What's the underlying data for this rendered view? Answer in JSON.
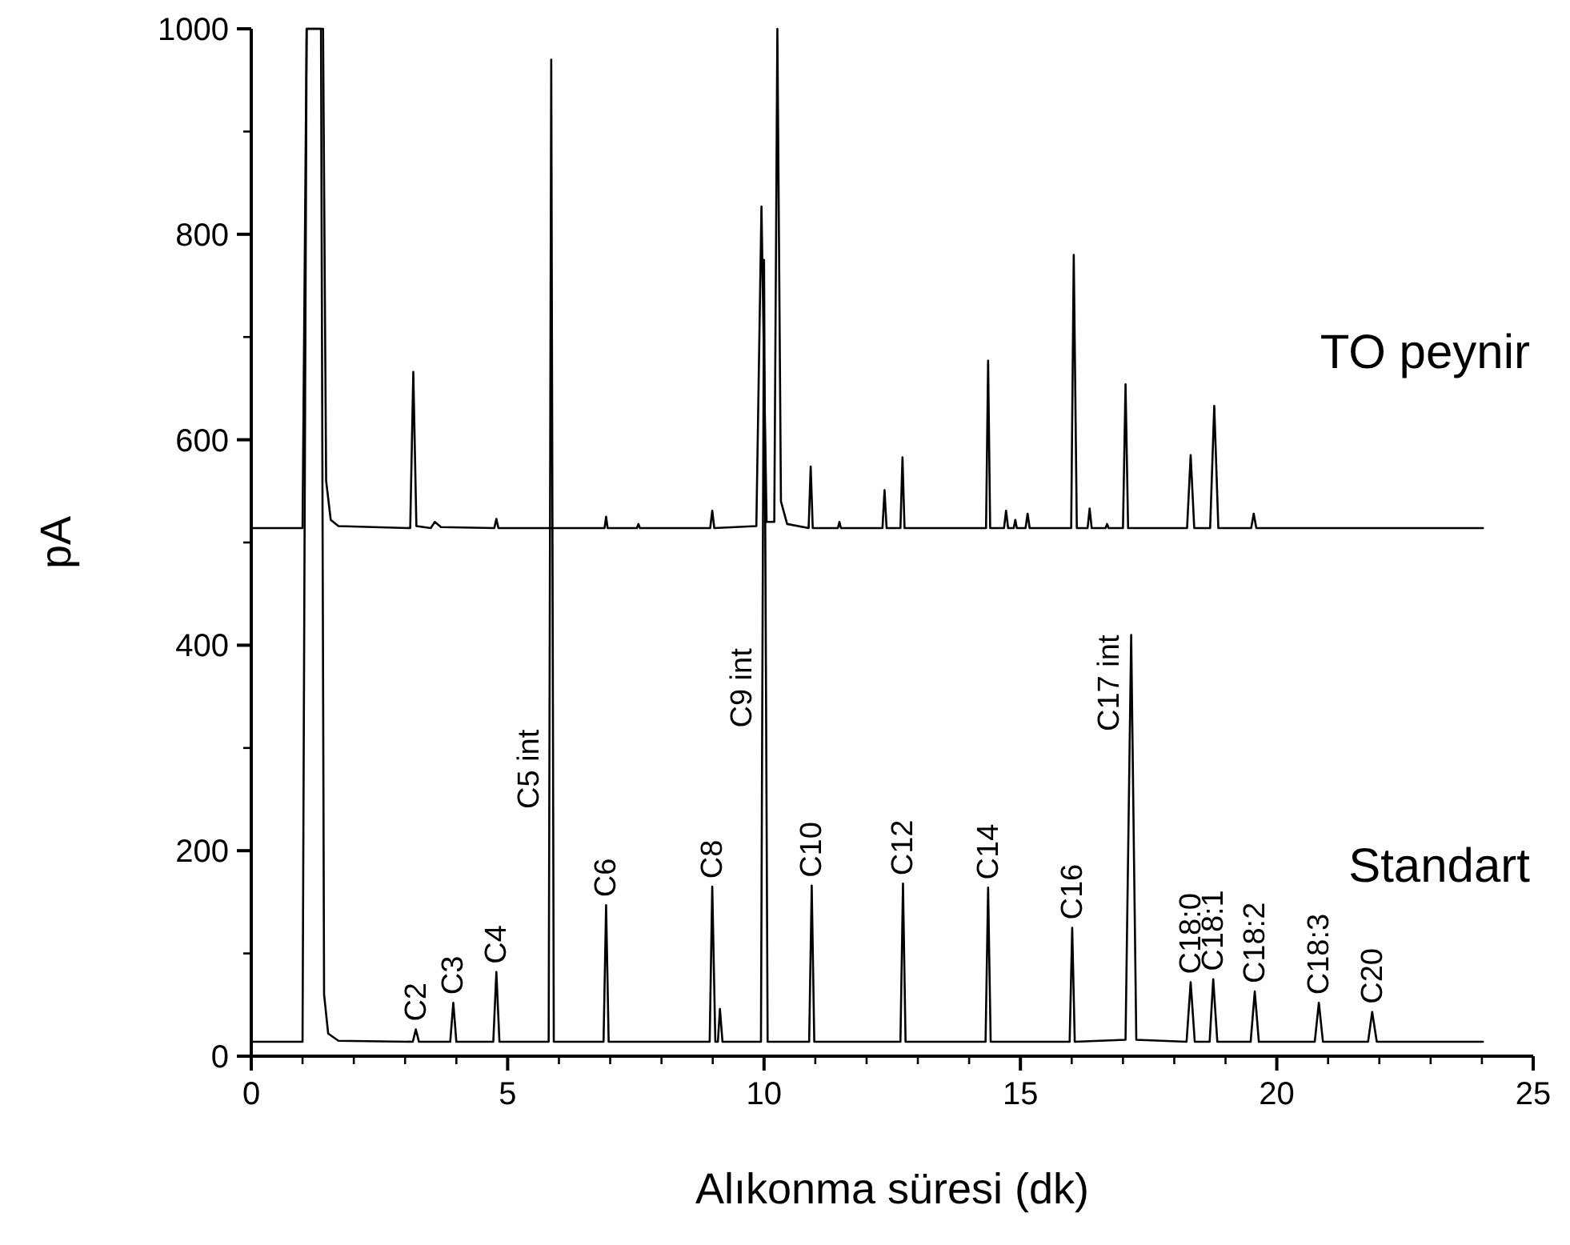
{
  "chart_data": {
    "type": "line",
    "xlabel": "Alıkonma süresi (dk)",
    "ylabel": "pA",
    "xlim": [
      0,
      25
    ],
    "ylim": [
      0,
      1000
    ],
    "xticks": [
      0,
      {
        "value": 1,
        "label": null
      },
      {
        "value": 2,
        "label": null
      },
      {
        "value": 3,
        "label": null
      },
      {
        "value": 4,
        "label": null
      },
      5,
      {
        "value": 6,
        "label": null
      },
      {
        "value": 7,
        "label": null
      },
      {
        "value": 8,
        "label": null
      },
      {
        "value": 9,
        "label": null
      },
      10,
      {
        "value": 11,
        "label": null
      },
      {
        "value": 12,
        "label": null
      },
      {
        "value": 13,
        "label": null
      },
      {
        "value": 14,
        "label": null
      },
      15,
      {
        "value": 16,
        "label": null
      },
      {
        "value": 17,
        "label": null
      },
      {
        "value": 18,
        "label": null
      },
      {
        "value": 19,
        "label": null
      },
      20,
      {
        "value": 21,
        "label": null
      },
      {
        "value": 22,
        "label": null
      },
      {
        "value": 23,
        "label": null
      },
      {
        "value": 24,
        "label": null
      },
      25
    ],
    "yticks": [
      0,
      {
        "value": 100,
        "label": null
      },
      200,
      {
        "value": 300,
        "label": null
      },
      400,
      {
        "value": 500,
        "label": null
      },
      600,
      {
        "value": 700,
        "label": null
      },
      800,
      {
        "value": 900,
        "label": null
      },
      1000
    ],
    "grid": false,
    "marker": "none",
    "line_style": "solid",
    "series": [
      {
        "name": "TO peynir",
        "color": "#000000",
        "x": [
          0,
          1.0,
          1.08,
          1.4,
          1.46,
          1.55,
          1.7,
          3.1,
          3.16,
          3.22,
          3.5,
          3.58,
          3.7,
          4.74,
          4.78,
          4.82,
          6.89,
          6.92,
          6.95,
          7.52,
          7.55,
          7.58,
          8.95,
          8.99,
          9.03,
          9.85,
          9.95,
          10.05,
          10.2,
          10.26,
          10.33,
          10.45,
          10.87,
          10.91,
          10.95,
          11.44,
          11.47,
          11.5,
          12.31,
          12.35,
          12.39,
          12.66,
          12.7,
          12.74,
          14.33,
          14.37,
          14.41,
          14.68,
          14.72,
          14.76,
          14.87,
          14.9,
          14.93,
          15.1,
          15.14,
          15.18,
          15.99,
          16.04,
          16.1,
          16.31,
          16.35,
          16.39,
          16.66,
          16.69,
          16.72,
          17.0,
          17.05,
          17.1,
          18.25,
          18.32,
          18.39,
          18.7,
          18.78,
          18.86,
          19.5,
          19.55,
          19.6,
          24.02
        ],
        "values": [
          514,
          514,
          1000,
          1000,
          560,
          522,
          516,
          514,
          666,
          516,
          514,
          520,
          515,
          514,
          523,
          514,
          514,
          525,
          514,
          514,
          518,
          514,
          514,
          531,
          514,
          516,
          827,
          520,
          520,
          1000,
          540,
          518,
          514,
          574,
          514,
          514,
          520,
          514,
          514,
          551,
          514,
          514,
          583,
          514,
          514,
          677,
          514,
          514,
          531,
          514,
          514,
          522,
          514,
          514,
          528,
          514,
          514,
          780,
          514,
          514,
          533,
          514,
          514,
          518,
          514,
          514,
          654,
          514,
          514,
          585,
          514,
          514,
          633,
          514,
          514,
          528,
          514,
          514
        ]
      },
      {
        "name": "Standart",
        "color": "#000000",
        "x": [
          0,
          1.0,
          1.08,
          1.36,
          1.42,
          1.5,
          1.7,
          3.15,
          3.21,
          3.27,
          3.88,
          3.94,
          4.0,
          4.72,
          4.78,
          4.84,
          5.8,
          5.85,
          5.9,
          6.87,
          6.92,
          6.97,
          8.94,
          8.99,
          9.05,
          9.1,
          9.14,
          9.19,
          9.94,
          10.0,
          10.07,
          10.88,
          10.93,
          10.98,
          12.66,
          12.71,
          12.76,
          14.32,
          14.37,
          14.42,
          15.96,
          16.01,
          16.06,
          17.05,
          17.16,
          17.26,
          18.24,
          18.32,
          18.4,
          18.69,
          18.76,
          18.84,
          19.49,
          19.57,
          19.65,
          20.74,
          20.82,
          20.9,
          21.78,
          21.86,
          21.95,
          24.02
        ],
        "values": [
          14,
          14,
          1000,
          1000,
          60,
          22,
          15,
          14,
          26,
          14,
          14,
          52,
          14,
          14,
          82,
          14,
          14,
          970,
          14,
          14,
          147,
          14,
          14,
          165,
          14,
          14,
          46,
          14,
          14,
          775,
          14,
          14,
          166,
          14,
          14,
          168,
          14,
          14,
          164,
          14,
          14,
          125,
          14,
          16,
          410,
          16,
          14,
          72,
          14,
          14,
          75,
          14,
          14,
          63,
          14,
          14,
          52,
          14,
          14,
          43,
          14,
          14
        ]
      }
    ],
    "annotations": [
      {
        "text": "C2",
        "x": 3.21,
        "y": 26
      },
      {
        "text": "C3",
        "x": 3.94,
        "y": 52
      },
      {
        "text": "C4",
        "x": 4.78,
        "y": 82
      },
      {
        "text": "C5 int",
        "x": 5.85,
        "y": 318
      },
      {
        "text": "C6",
        "x": 6.92,
        "y": 147
      },
      {
        "text": "C8",
        "x": 8.99,
        "y": 165
      },
      {
        "text": "C9 int",
        "x": 10.0,
        "y": 397
      },
      {
        "text": "C10",
        "x": 10.93,
        "y": 166
      },
      {
        "text": "C12",
        "x": 12.71,
        "y": 168
      },
      {
        "text": "C14",
        "x": 14.37,
        "y": 164
      },
      {
        "text": "C16",
        "x": 16.01,
        "y": 125
      },
      {
        "text": "C17 int",
        "x": 17.16,
        "y": 410
      },
      {
        "text": "C18:0",
        "x": 18.32,
        "y": 72
      },
      {
        "text": "C18:1",
        "x": 18.76,
        "y": 75
      },
      {
        "text": "C18:2",
        "x": 19.57,
        "y": 63
      },
      {
        "text": "C18:3",
        "x": 20.82,
        "y": 52
      },
      {
        "text": "C20",
        "x": 21.86,
        "y": 43
      }
    ]
  }
}
